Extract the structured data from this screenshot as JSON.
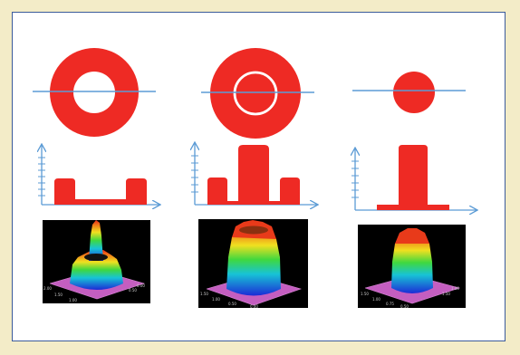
{
  "colors": {
    "page_background": "#f3ecc8",
    "figure_background": "#ffffff",
    "figure_border": "#3b5b9a",
    "shape_fill": "#ee2a24",
    "line_color": "#5b9bd5",
    "plot_background": "#000000",
    "plot_floor": "#c45ec0"
  },
  "columns": [
    {
      "id": "ring",
      "profile": "two-side-peaks",
      "shape": "annulus"
    },
    {
      "id": "ring-with-inner-line",
      "profile": "center-and-side-peaks",
      "shape": "annulus-with-inner-circle"
    },
    {
      "id": "disk",
      "profile": "single-center-peak",
      "shape": "disk"
    }
  ],
  "plot_tick_labels": {
    "left": [
      "2.00",
      "1.50",
      "1.00",
      "0.50",
      "0.00"
    ],
    "middle": [
      "1.50",
      "1.00",
      "0.50",
      "0.00"
    ],
    "right": [
      "1.50",
      "1.00",
      "0.75",
      "0.50",
      "1.50",
      "1.00"
    ]
  }
}
